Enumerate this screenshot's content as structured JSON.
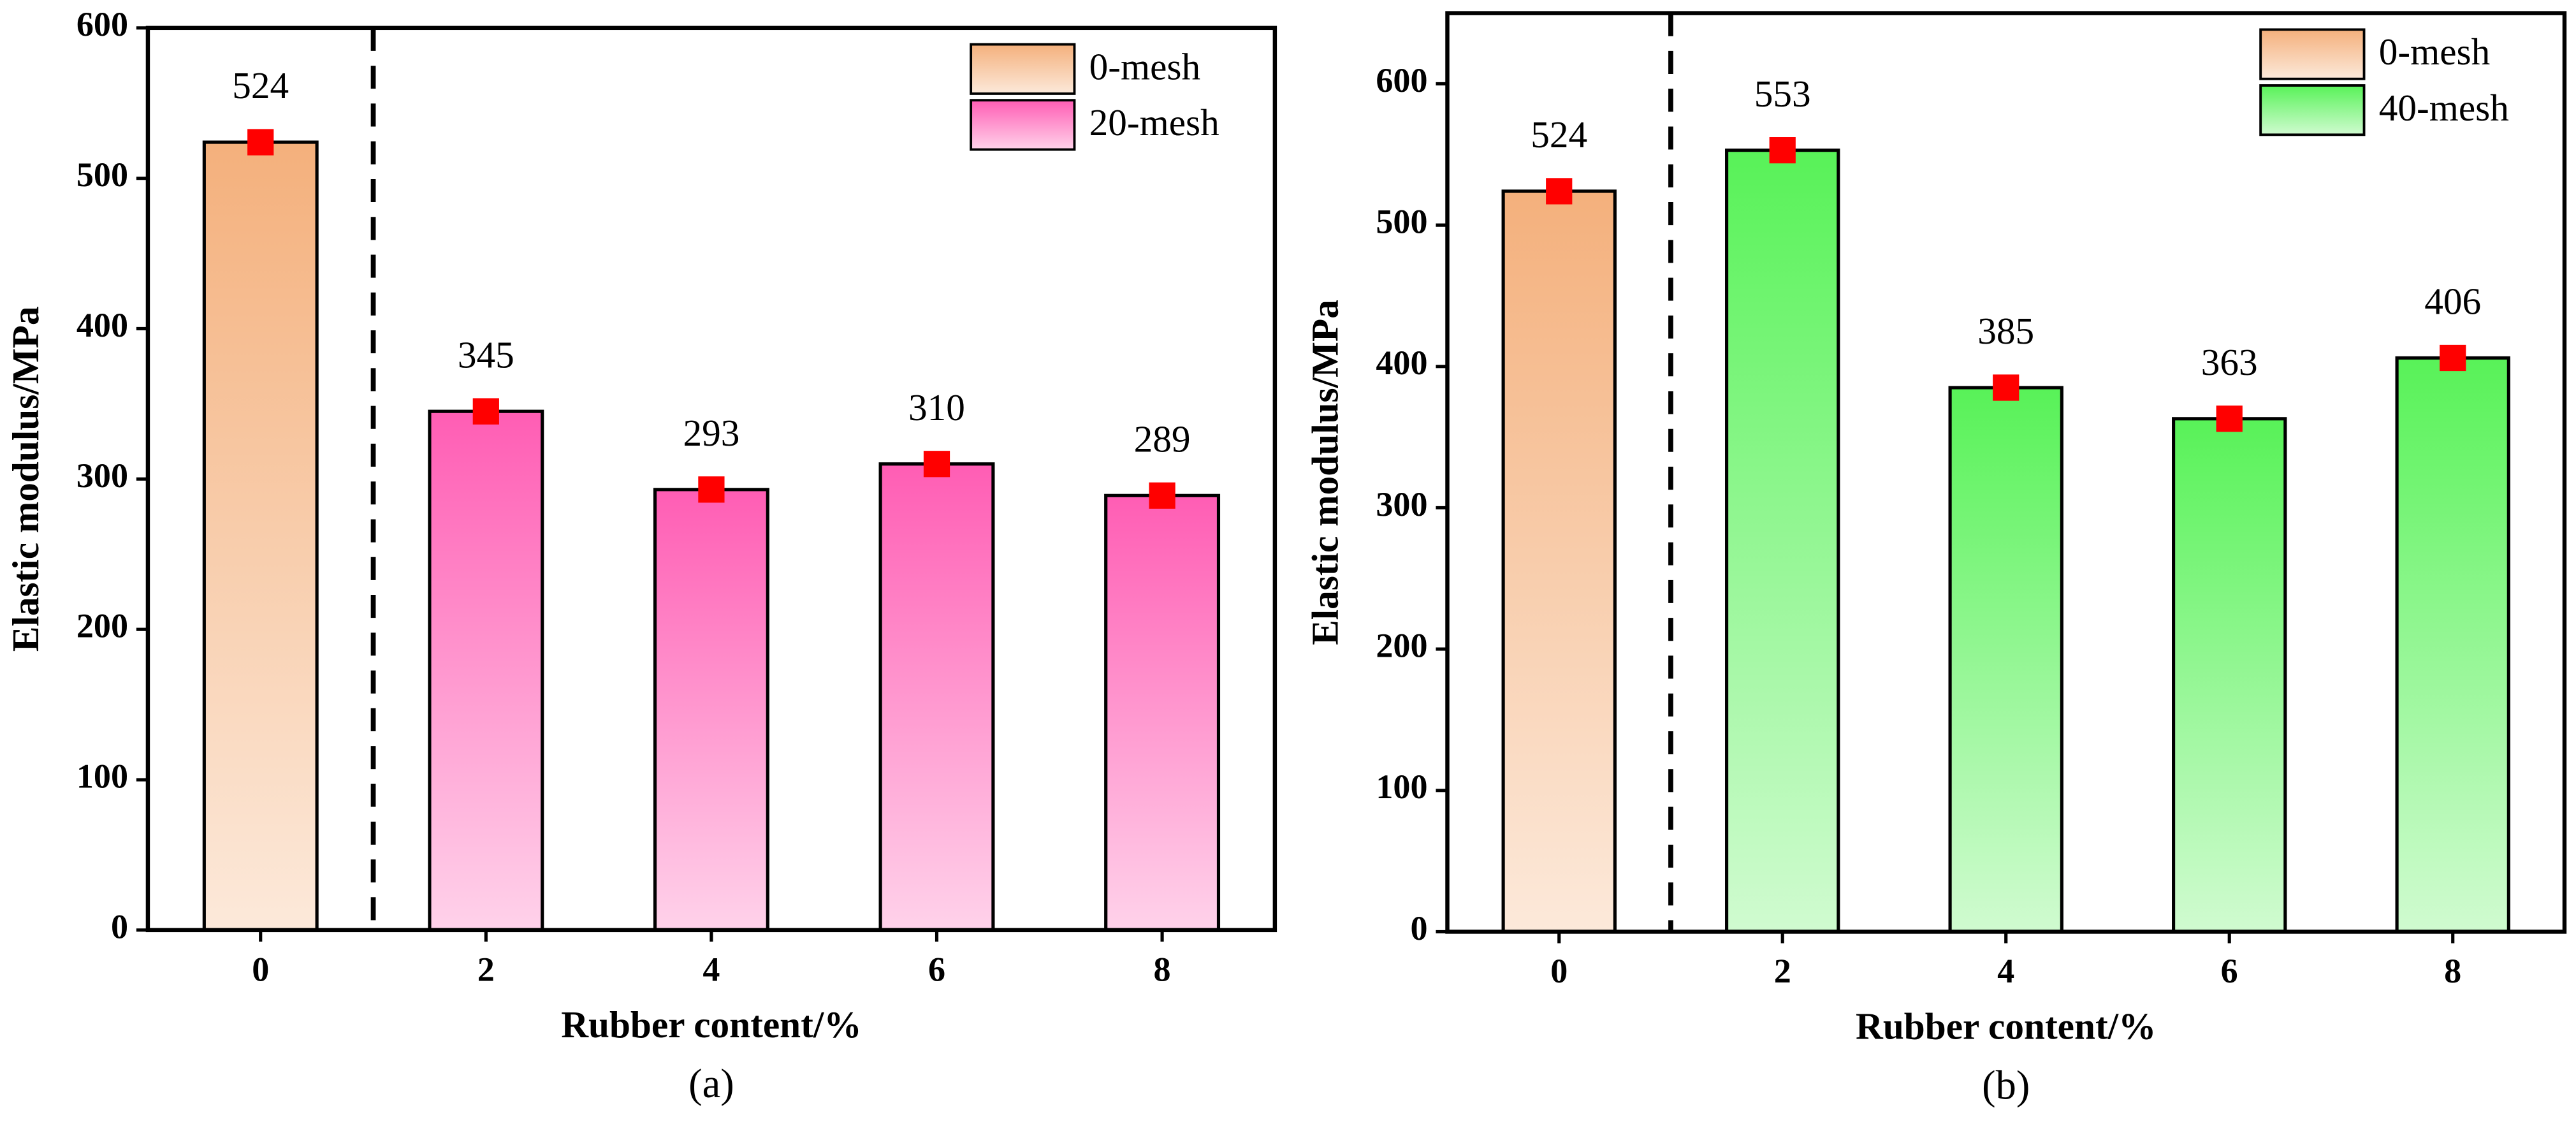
{
  "chart_data": [
    {
      "type": "bar",
      "caption": "(a)",
      "xlabel": "Rubber content/%",
      "ylabel": "Elastic modulus/MPa",
      "categories": [
        "0",
        "2",
        "4",
        "6",
        "8"
      ],
      "series": [
        {
          "name": "0-mesh",
          "color": "#f4b07c",
          "values": [
            524,
            null,
            null,
            null,
            null
          ]
        },
        {
          "name": "20-mesh",
          "color": "#ff5db4",
          "values": [
            null,
            345,
            293,
            310,
            289
          ]
        }
      ],
      "ylim": [
        0,
        600
      ],
      "yticks": [
        0,
        100,
        200,
        300,
        400,
        500,
        600
      ],
      "legend": "upper right"
    },
    {
      "type": "bar",
      "caption": "(b)",
      "xlabel": "Rubber content/%",
      "ylabel": "Elastic modulus/MPa",
      "categories": [
        "0",
        "2",
        "4",
        "6",
        "8"
      ],
      "series": [
        {
          "name": "0-mesh",
          "color": "#f4b07c",
          "values": [
            524,
            null,
            null,
            null,
            null
          ]
        },
        {
          "name": "40-mesh",
          "color": "#58f258",
          "values": [
            null,
            553,
            385,
            363,
            406
          ]
        }
      ],
      "ylim": [
        0,
        650
      ],
      "yticks": [
        0,
        100,
        200,
        300,
        400,
        500,
        600
      ],
      "legend": "upper right"
    }
  ]
}
